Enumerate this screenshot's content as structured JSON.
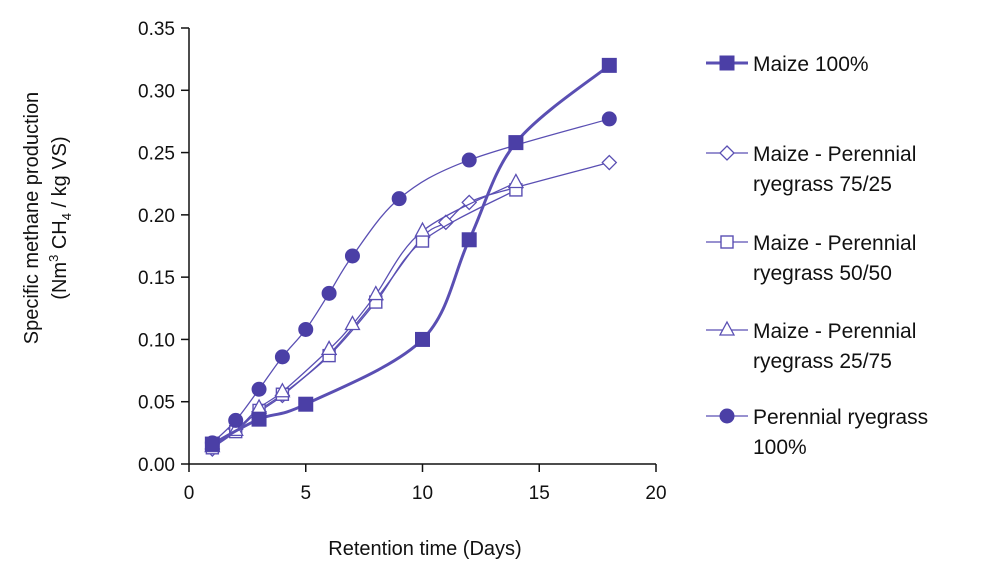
{
  "chart_data": {
    "type": "line",
    "title": "",
    "xlabel": "Retention time (Days)",
    "ylabel_line1": "Specific methane production",
    "ylabel_line2": {
      "open": "(Nm",
      "sup": "3",
      "mid": " CH",
      "sub": "4",
      "close": " / kg VS)"
    },
    "xlim": [
      0,
      20
    ],
    "ylim": [
      0,
      0.35
    ],
    "xticks": [
      0,
      5,
      10,
      15,
      20
    ],
    "xtick_labels": [
      "0",
      "5",
      "10",
      "15",
      "20"
    ],
    "yticks": [
      0,
      0.05,
      0.1,
      0.15,
      0.2,
      0.25,
      0.3,
      0.35
    ],
    "ytick_labels": [
      "0.00",
      "0.05",
      "0.10",
      "0.15",
      "0.20",
      "0.25",
      "0.30",
      "0.35"
    ],
    "grid": false,
    "legend_position": "right",
    "series": [
      {
        "name_lines": [
          "Maize 100%"
        ],
        "marker": "square-filled",
        "line_width": "thick",
        "x": [
          1,
          3,
          5,
          10,
          12,
          14,
          18
        ],
        "y": [
          0.016,
          0.036,
          0.048,
          0.1,
          0.18,
          0.258,
          0.32
        ]
      },
      {
        "name_lines": [
          "Maize - Perennial",
          "ryegrass 75/25"
        ],
        "marker": "diamond-open",
        "line_width": "thin",
        "x": [
          1,
          2,
          3,
          4,
          6,
          8,
          10,
          11,
          12,
          14,
          18
        ],
        "y": [
          0.012,
          0.028,
          0.042,
          0.055,
          0.088,
          0.132,
          0.182,
          0.194,
          0.21,
          0.222,
          0.242
        ]
      },
      {
        "name_lines": [
          "Maize - Perennial",
          "ryegrass 50/50"
        ],
        "marker": "square-open",
        "line_width": "thin",
        "x": [
          1,
          2,
          3,
          4,
          6,
          8,
          10,
          14
        ],
        "y": [
          0.013,
          0.026,
          0.043,
          0.056,
          0.087,
          0.13,
          0.179,
          0.22
        ]
      },
      {
        "name_lines": [
          "Maize - Perennial",
          "ryegrass 25/75"
        ],
        "marker": "triangle-open",
        "line_width": "thin",
        "x": [
          1,
          2,
          3,
          4,
          6,
          7,
          8,
          10,
          14
        ],
        "y": [
          0.014,
          0.027,
          0.045,
          0.058,
          0.092,
          0.112,
          0.136,
          0.187,
          0.226
        ]
      },
      {
        "name_lines": [
          "Perennial ryegrass",
          "100%"
        ],
        "marker": "circle-filled",
        "line_width": "thin",
        "x": [
          1,
          2,
          3,
          4,
          5,
          6,
          7,
          9,
          12,
          18
        ],
        "y": [
          0.017,
          0.035,
          0.06,
          0.086,
          0.108,
          0.137,
          0.167,
          0.213,
          0.244,
          0.277
        ]
      }
    ]
  },
  "colors": {
    "series": "#5a4fb3",
    "series_dark": "#4b3fa6",
    "axis": "#111111"
  }
}
